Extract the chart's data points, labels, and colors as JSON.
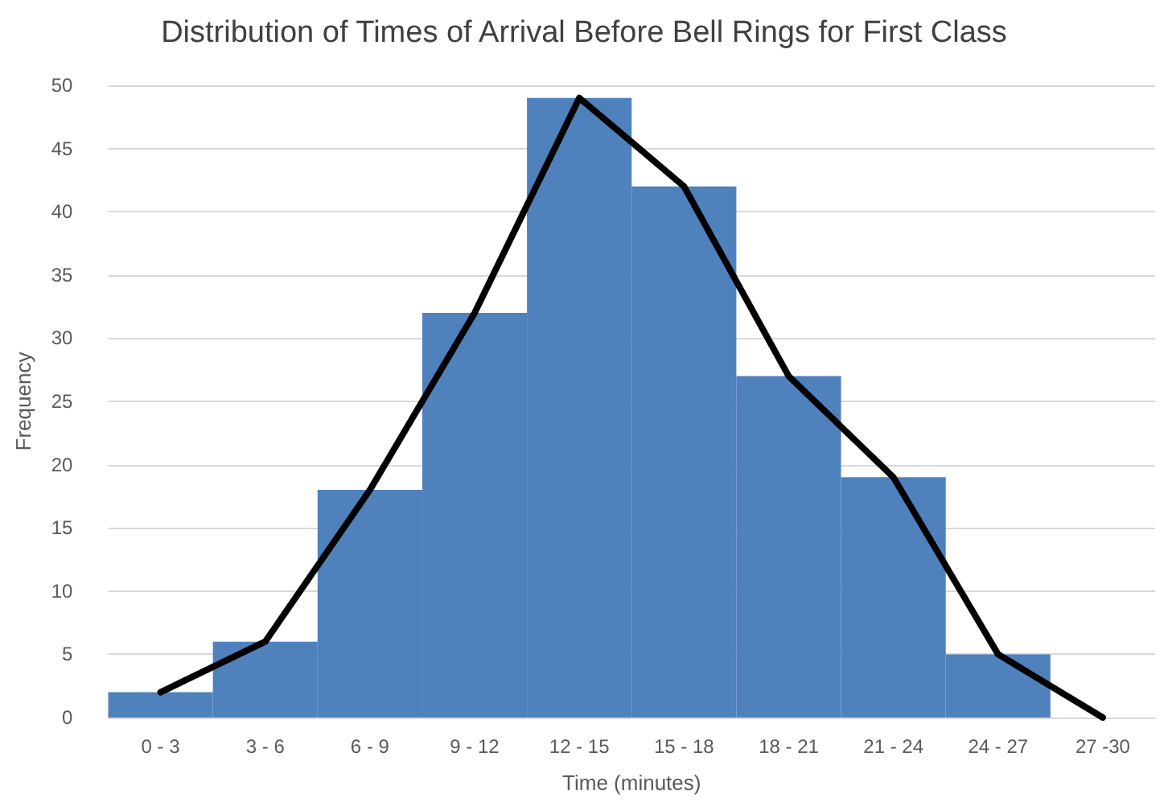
{
  "chart_data": {
    "type": "bar",
    "title": "Distribution of Times of Arrival Before Bell Rings for First Class",
    "xlabel": "Time (minutes)",
    "ylabel": "Frequency",
    "categories": [
      "0 - 3",
      "3 - 6",
      "6 - 9",
      "9 - 12",
      "12 - 15",
      "15 - 18",
      "18 - 21",
      "21 - 24",
      "24 - 27",
      "27 -30"
    ],
    "series": [
      {
        "color": "#4f81bd",
        "values": [
          2,
          6,
          18,
          32,
          49,
          42,
          27,
          19,
          5,
          0
        ]
      },
      {
        "type": "line",
        "color": "#000000",
        "values": [
          2,
          6,
          18,
          32,
          49,
          42,
          27,
          19,
          5,
          0
        ]
      }
    ],
    "ylim": [
      0,
      50
    ],
    "yticks": [
      0,
      5,
      10,
      15,
      20,
      25,
      30,
      35,
      40,
      45,
      50
    ],
    "grid": "y",
    "marker": "none",
    "line_style": "solid"
  }
}
